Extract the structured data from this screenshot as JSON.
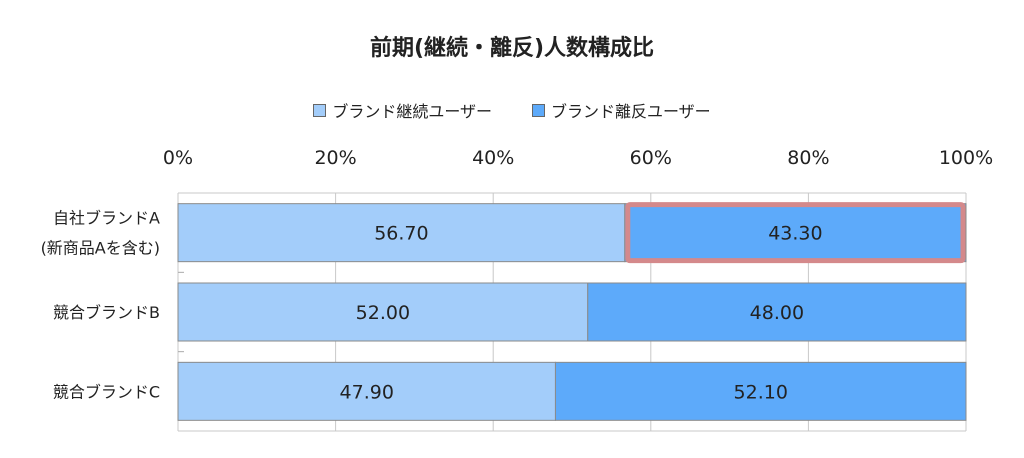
{
  "chart_data": {
    "type": "bar",
    "orientation": "horizontal",
    "stacked": true,
    "percent_scale": true,
    "title": "前期(継続・離反)人数構成比",
    "categories": [
      "自社ブランドA\n(新商品Aを含む)",
      "競合ブランドB",
      "競合ブランドC"
    ],
    "series": [
      {
        "name": "ブランド継続ユーザー",
        "values": [
          56.7,
          52.0,
          47.9
        ],
        "labels": [
          "56.70",
          "52.00",
          "47.90"
        ],
        "color": "#a3cdfa"
      },
      {
        "name": "ブランド離反ユーザー",
        "values": [
          43.3,
          48.0,
          52.1
        ],
        "labels": [
          "43.30",
          "48.00",
          "52.10"
        ],
        "color": "#5daafa"
      }
    ],
    "xlim": [
      0,
      100
    ],
    "xticks": [
      "0%",
      "20%",
      "40%",
      "60%",
      "80%",
      "100%"
    ],
    "grid": true,
    "legend_position": "top",
    "highlight": {
      "category_index": 0,
      "series_index": 1,
      "color": "#d4898b"
    }
  }
}
